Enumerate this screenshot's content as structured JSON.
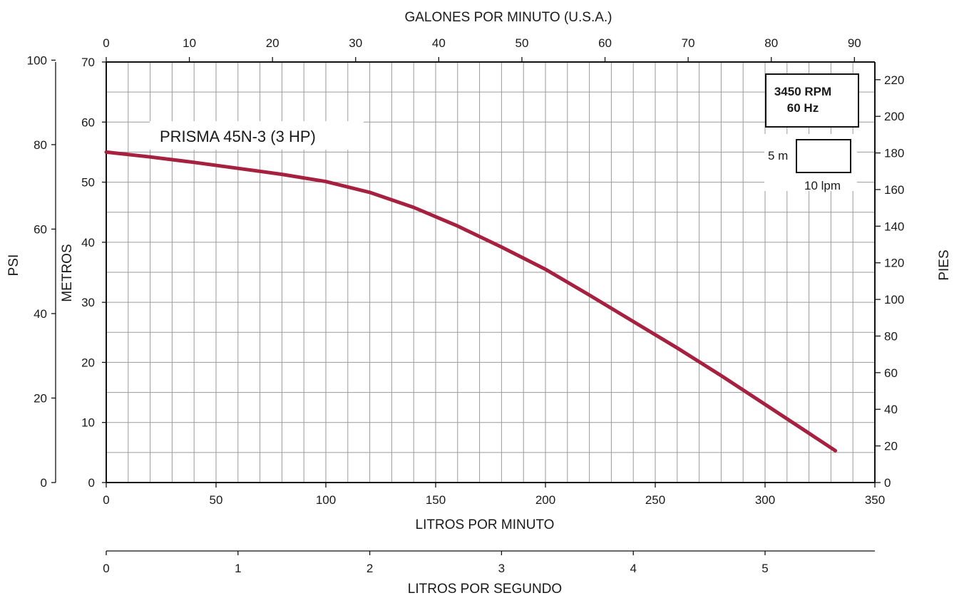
{
  "chart_data": {
    "type": "line",
    "title": "",
    "series": [
      {
        "name": "PRISMA 45N-3 (3 HP)",
        "color": "#a6203f",
        "x_lpm": [
          0,
          20,
          40,
          60,
          80,
          100,
          120,
          140,
          160,
          180,
          200,
          220,
          240,
          260,
          280,
          300,
          320,
          332
        ],
        "y_m": [
          55,
          54.2,
          53.3,
          52.3,
          51.3,
          50.1,
          48.3,
          45.8,
          42.7,
          39.2,
          35.5,
          31.2,
          26.8,
          22.4,
          17.8,
          13.0,
          8.2,
          5.3
        ]
      }
    ],
    "axes": {
      "bottom": {
        "label": "LITROS POR MINUTO",
        "min": 0,
        "max": 350,
        "ticks": [
          0,
          50,
          100,
          150,
          200,
          250,
          300,
          350
        ]
      },
      "top": {
        "label": "GALONES POR MINUTO (U.S.A.)",
        "ticks": [
          0,
          10,
          20,
          30,
          40,
          50,
          60,
          70,
          80,
          90
        ]
      },
      "left_inner": {
        "label": "METROS",
        "min": 0,
        "max": 70,
        "ticks": [
          0,
          10,
          20,
          30,
          40,
          50,
          60,
          70
        ]
      },
      "left_outer": {
        "label": "PSI",
        "ticks": [
          0,
          20,
          40,
          60,
          80,
          100
        ]
      },
      "right": {
        "label": "PIES",
        "ticks": [
          0,
          20,
          40,
          60,
          80,
          100,
          120,
          140,
          160,
          180,
          200,
          220
        ]
      },
      "secondary_bottom": {
        "label": "LITROS POR SEGUNDO",
        "ticks": [
          0,
          1,
          2,
          3,
          4,
          5
        ]
      }
    },
    "grid": true,
    "annotations": {
      "series_label": "PRISMA 45N-3 (3 HP)",
      "speed_line1": "3450 RPM",
      "speed_line2": "60 Hz",
      "scale_vertical": "5 m",
      "scale_horizontal": "10 lpm"
    }
  }
}
